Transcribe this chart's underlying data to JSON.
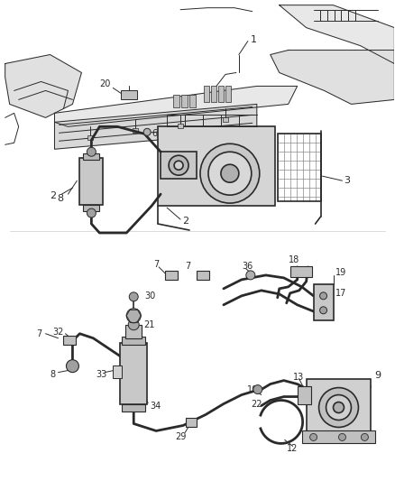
{
  "bg_color": "#ffffff",
  "ec": "#2a2a2a",
  "lw_hose": 2.0,
  "lw_part": 1.2,
  "lw_thin": 0.7,
  "fc_part": "#d8d8d8",
  "fc_light": "#eeeeee",
  "fc_dark": "#b0b0b0"
}
